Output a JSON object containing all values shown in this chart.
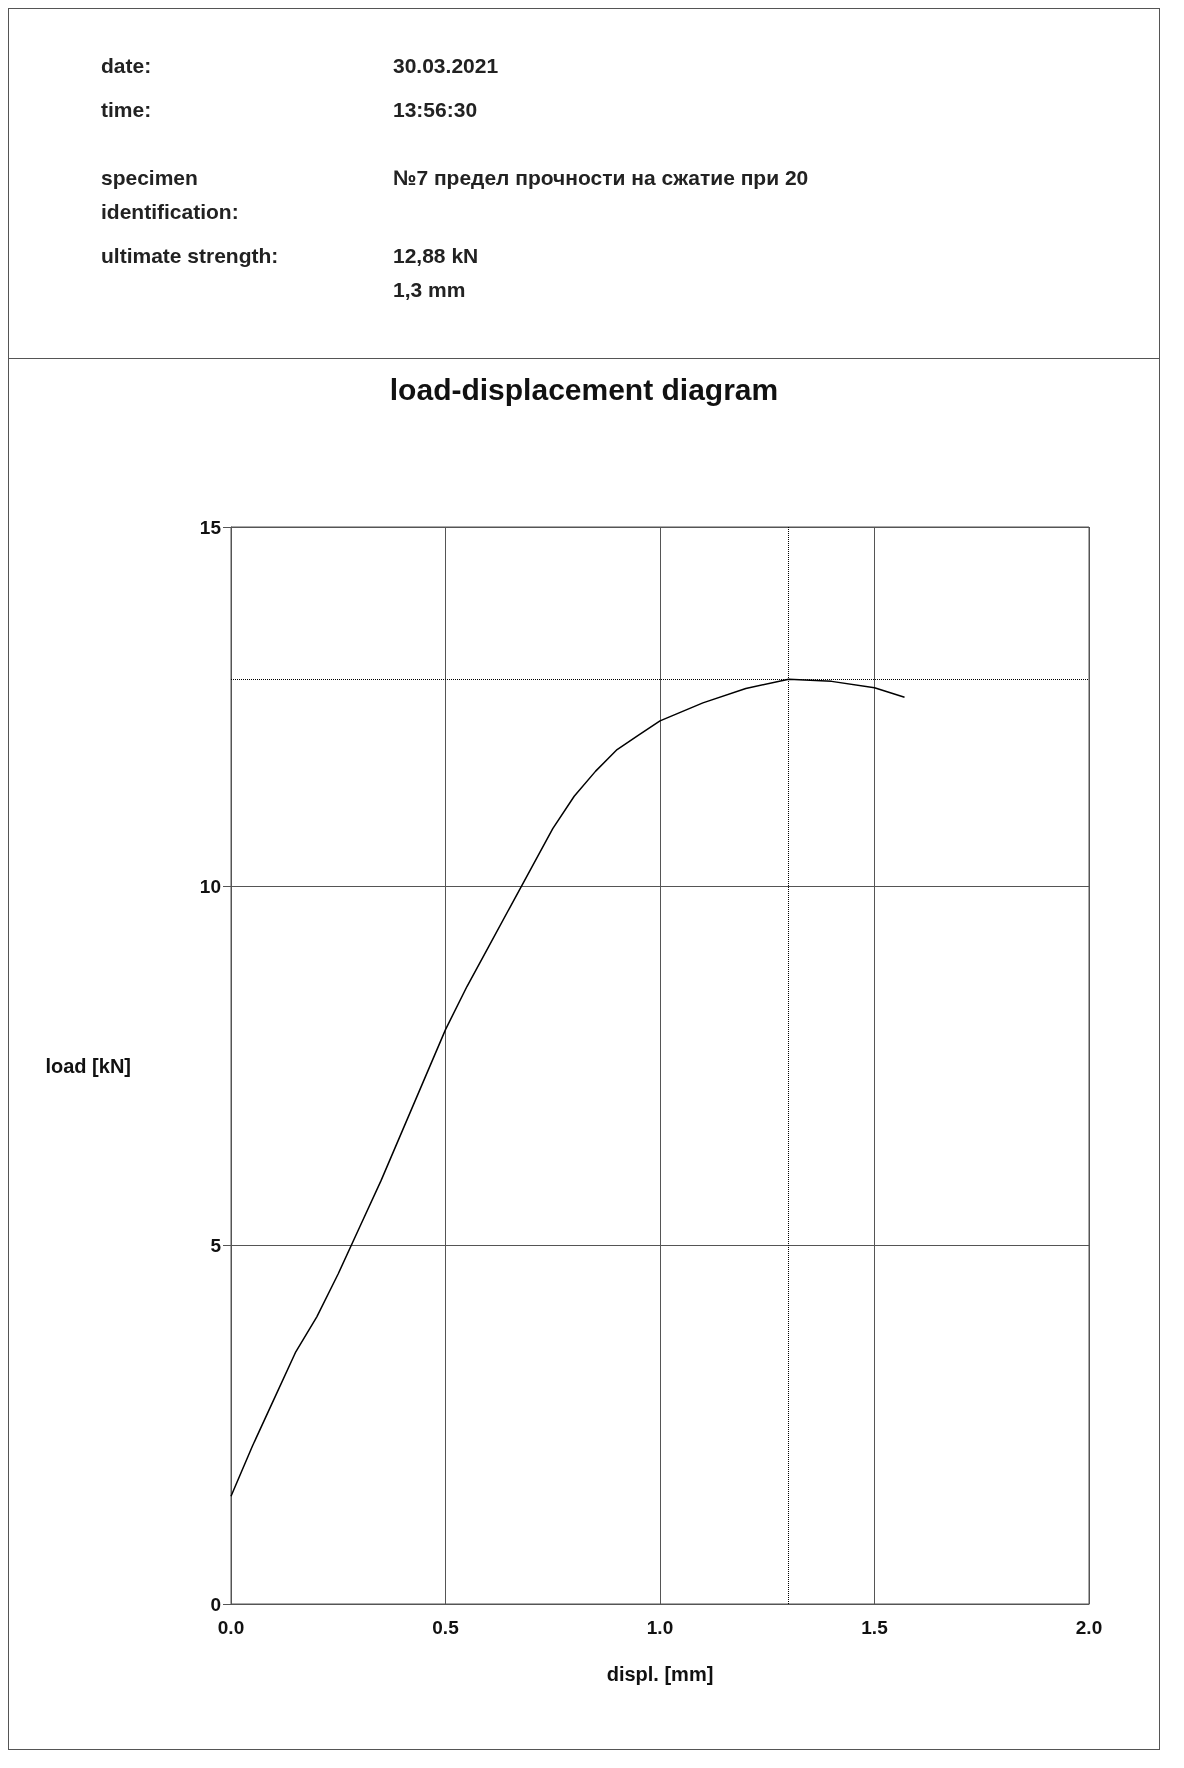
{
  "chart_data": {
    "type": "line",
    "title": "load-displacement diagram",
    "xlabel": "displ. [mm]",
    "ylabel": "load [kN]",
    "annotations": [
      "date:",
      "30.03.2021",
      "time:",
      "13:56:30",
      "specimen identification:",
      "№7 предел прочности на сжатие при 20",
      "ultimate strength:",
      "12,88 kN\n1,3 mm"
    ],
    "x": [
      0,
      0.05,
      0.1,
      0.15,
      0.2,
      0.25,
      0.3,
      0.35,
      0.4,
      0.45,
      0.5,
      0.55,
      0.6,
      0.65,
      0.7,
      0.75,
      0.8,
      0.85,
      0.9,
      0.95,
      1.0,
      1.1,
      1.2,
      1.3,
      1.4,
      1.5,
      1.57
    ],
    "series": [
      {
        "color": "#000000",
        "values": [
          1.5,
          2.2,
          2.85,
          3.5,
          4.0,
          4.6,
          5.25,
          5.9,
          6.6,
          7.3,
          8.0,
          8.6,
          9.15,
          9.7,
          10.25,
          10.8,
          11.25,
          11.6,
          11.9,
          12.1,
          12.3,
          12.55,
          12.75,
          12.88,
          12.85,
          12.76,
          12.63
        ]
      }
    ],
    "xlim": [
      0,
      2
    ],
    "xticks": [
      {
        "value": 0,
        "label": "0.0"
      },
      0.5,
      {
        "value": 1,
        "label": "1.0"
      },
      1.5,
      {
        "value": 2,
        "label": "2.0"
      }
    ],
    "ylim": [
      0,
      15
    ],
    "yticks": [
      0,
      5,
      10,
      15
    ],
    "ref_lines": [
      {
        "axis": "x",
        "value": 1.3,
        "line_style": "dotted"
      },
      {
        "axis": "y",
        "value": 12.88,
        "line_style": "dotted"
      }
    ],
    "grid": true,
    "marker": "none",
    "line_style": "solid"
  }
}
